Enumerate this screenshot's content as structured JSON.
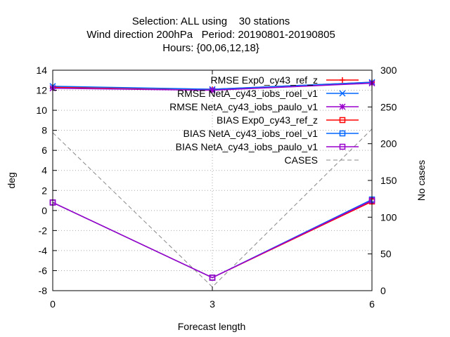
{
  "chart_data": {
    "type": "line",
    "title_lines": [
      "Selection: ALL using    30 stations",
      "Wind direction 200hPa   Period: 20190801-20190805",
      "Hours: {00,06,12,18}"
    ],
    "xlabel": "Forecast length",
    "ylabel": "deg",
    "y2label": "No cases",
    "x": [
      0,
      3,
      6
    ],
    "x_ticks": [
      "0",
      "3",
      "6"
    ],
    "xlim": [
      0,
      6
    ],
    "ylim": [
      -8,
      14
    ],
    "y_ticks": [
      "-8",
      "-6",
      "-4",
      "-2",
      "0",
      "2",
      "4",
      "6",
      "8",
      "10",
      "12",
      "14"
    ],
    "y2lim": [
      0,
      300
    ],
    "y2_ticks": [
      "0",
      "50",
      "100",
      "150",
      "200",
      "250",
      "300"
    ],
    "grid": true,
    "legend_position": "top-right",
    "series": [
      {
        "name": "RMSE Exp0_cy43_ref_z",
        "values": [
          12.3,
          12.1,
          12.8
        ],
        "color": "#ff0000",
        "marker": "plus",
        "axis": "y"
      },
      {
        "name": "RMSE NetA_cy43_iobs_roel_v1",
        "values": [
          12.4,
          12.1,
          12.8
        ],
        "color": "#0066ff",
        "marker": "cross",
        "axis": "y"
      },
      {
        "name": "RMSE NetA_cy43_iobs_paulo_v1",
        "values": [
          12.2,
          12.0,
          12.7
        ],
        "color": "#9900cc",
        "marker": "star",
        "axis": "y"
      },
      {
        "name": "BIAS Exp0_cy43_ref_z",
        "values": [
          0.8,
          -6.7,
          0.9
        ],
        "color": "#ff0000",
        "marker": "square",
        "axis": "y"
      },
      {
        "name": "BIAS NetA_cy43_iobs_roel_v1",
        "values": [
          0.8,
          -6.7,
          1.1
        ],
        "color": "#0066ff",
        "marker": "square",
        "axis": "y"
      },
      {
        "name": "BIAS NetA_cy43_iobs_paulo_v1",
        "values": [
          0.8,
          -6.7,
          1.0
        ],
        "color": "#9900cc",
        "marker": "square",
        "axis": "y"
      },
      {
        "name": "CASES",
        "values": [
          215,
          5,
          220
        ],
        "color": "#888888",
        "marker": "none",
        "dashed": true,
        "axis": "y2"
      }
    ]
  }
}
